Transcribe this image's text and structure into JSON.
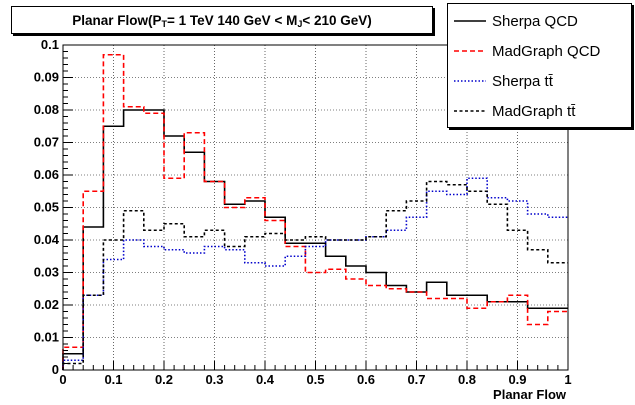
{
  "chart_data": {
    "type": "line",
    "title": {
      "prefix": "Planar Flow(P",
      "pt_sub": "T",
      "middle": " = 1 TeV 140 GeV < M",
      "mj_sub": "J",
      "suffix": " < 210 GeV)"
    },
    "xlabel": "Planar Flow",
    "ylabel": "",
    "xlim": [
      0,
      1
    ],
    "ylim": [
      0,
      0.1
    ],
    "x_ticks": [
      "0",
      "0.1",
      "0.2",
      "0.3",
      "0.4",
      "0.5",
      "0.6",
      "0.7",
      "0.8",
      "0.9",
      "1"
    ],
    "y_ticks": [
      "0",
      "0.01",
      "0.02",
      "0.03",
      "0.04",
      "0.05",
      "0.06",
      "0.07",
      "0.08",
      "0.09",
      "0.1"
    ],
    "grid": true,
    "legend_position": "top-right",
    "bin_edges": [
      0,
      0.04,
      0.08,
      0.12,
      0.16,
      0.2,
      0.24,
      0.28,
      0.32,
      0.36,
      0.4,
      0.44,
      0.48,
      0.52,
      0.56,
      0.6,
      0.64,
      0.68,
      0.72,
      0.76,
      0.8,
      0.84,
      0.88,
      0.92,
      0.96,
      1.0
    ],
    "series": [
      {
        "name": "Sherpa QCD",
        "color": "#000000",
        "dash": "solid",
        "values": [
          0.005,
          0.044,
          0.075,
          0.08,
          0.08,
          0.072,
          0.067,
          0.058,
          0.051,
          0.052,
          0.047,
          0.039,
          0.039,
          0.035,
          0.032,
          0.03,
          0.026,
          0.024,
          0.027,
          0.023,
          0.023,
          0.021,
          0.021,
          0.019,
          0.019
        ]
      },
      {
        "name": "MadGraph QCD",
        "color": "#ff0000",
        "dash": "dashed",
        "values": [
          0.007,
          0.055,
          0.097,
          0.081,
          0.079,
          0.059,
          0.073,
          0.058,
          0.05,
          0.053,
          0.046,
          0.038,
          0.03,
          0.031,
          0.028,
          0.026,
          0.025,
          0.024,
          0.022,
          0.022,
          0.019,
          0.021,
          0.023,
          0.014,
          0.018
        ]
      },
      {
        "name": "Sherpa tt̄",
        "color": "#0000cc",
        "dash": "dotted",
        "values": [
          0.003,
          0.023,
          0.034,
          0.04,
          0.038,
          0.037,
          0.036,
          0.038,
          0.037,
          0.033,
          0.032,
          0.035,
          0.038,
          0.04,
          0.04,
          0.041,
          0.043,
          0.047,
          0.055,
          0.054,
          0.059,
          0.053,
          0.052,
          0.048,
          0.047
        ]
      },
      {
        "name": "MadGraph tt̄",
        "color": "#000000",
        "dash": "short-dashed",
        "values": [
          0.002,
          0.023,
          0.04,
          0.049,
          0.043,
          0.045,
          0.041,
          0.043,
          0.038,
          0.041,
          0.042,
          0.04,
          0.041,
          0.04,
          0.04,
          0.041,
          0.049,
          0.052,
          0.058,
          0.057,
          0.055,
          0.051,
          0.043,
          0.037,
          0.033
        ]
      }
    ]
  }
}
